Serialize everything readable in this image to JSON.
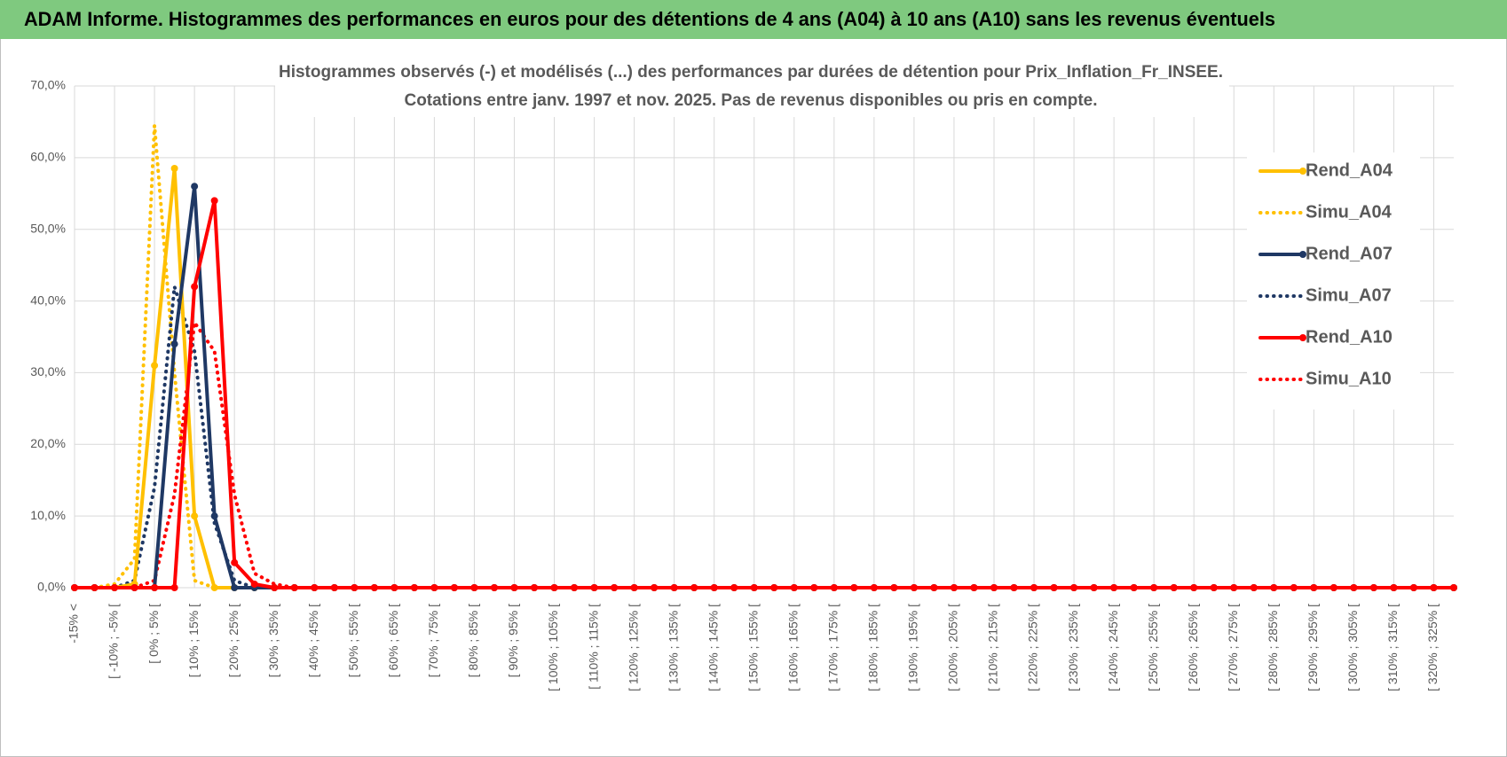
{
  "header": "ADAM Informe. Histogrammes des performances en euros pour des détentions de 4 ans (A04) à 10 ans (A10) sans les revenus éventuels",
  "chart_data": {
    "type": "line",
    "title": "Histogrammes observés (-) et modélisés (...) des performances par durées de détention pour Prix_Inflation_Fr_INSEE.",
    "subtitle": "Cotations entre janv. 1997 et nov. 2025. Pas de revenus disponibles ou pris en compte.",
    "categories": [
      "-15% <",
      null,
      "[ -10% ; -5% [",
      null,
      "[ 0% ; 5% [",
      null,
      "[ 10% ; 15% [",
      null,
      "[ 20% ; 25% [",
      null,
      "[ 30% ; 35% [",
      null,
      "[ 40% ; 45% [",
      null,
      "[ 50% ; 55% [",
      null,
      "[ 60% ; 65% [",
      null,
      "[ 70% ; 75% [",
      null,
      "[ 80% ; 85% [",
      null,
      "[ 90% ; 95% [",
      null,
      "[ 100% ; 105% [",
      null,
      "[ 110% ; 115% [",
      null,
      "[ 120% ; 125% [",
      null,
      "[ 130% ; 135% [",
      null,
      "[ 140% ; 145% [",
      null,
      "[ 150% ; 155% [",
      null,
      "[ 160% ; 165% [",
      null,
      "[ 170% ; 175% [",
      null,
      "[ 180% ; 185% [",
      null,
      "[ 190% ; 195% [",
      null,
      "[ 200% ; 205% [",
      null,
      "[ 210% ; 215% [",
      null,
      "[ 220% ; 225% [",
      null,
      "[ 230% ; 235% [",
      null,
      "[ 240% ; 245% [",
      null,
      "[ 250% ; 255% [",
      null,
      "[ 260% ; 265% [",
      null,
      "[ 270% ; 275% [",
      null,
      "[ 280% ; 285% [",
      null,
      "[ 290% ; 295% [",
      null,
      "[ 300% ; 305% [",
      null,
      "[ 310% ; 315% [",
      null,
      "[ 320% ; 325% [",
      null
    ],
    "series": [
      {
        "name": "Rend_A04",
        "color": "#ffc000",
        "style": "solid",
        "markers": true,
        "values": [
          0,
          0,
          0,
          0.5,
          31,
          58.5,
          10,
          0,
          0,
          0,
          0,
          0,
          0,
          0,
          0,
          0,
          0,
          0,
          0,
          0,
          0,
          0,
          0,
          0,
          0,
          0,
          0,
          0,
          0,
          0,
          0,
          0,
          0,
          0,
          0,
          0,
          0,
          0,
          0,
          0,
          0,
          0,
          0,
          0,
          0,
          0,
          0,
          0,
          0,
          0,
          0,
          0,
          0,
          0,
          0,
          0,
          0,
          0,
          0,
          0,
          0,
          0,
          0,
          0,
          0,
          0,
          0,
          0,
          0,
          0
        ]
      },
      {
        "name": "Simu_A04",
        "color": "#ffc000",
        "style": "dotted",
        "markers": false,
        "values": [
          0,
          0,
          0.5,
          4,
          64.5,
          30,
          1,
          0,
          0,
          0,
          0,
          0,
          0,
          0,
          0,
          0,
          0,
          0,
          0,
          0,
          0,
          0,
          0,
          0,
          0,
          0,
          0,
          0,
          0,
          0,
          0,
          0,
          0,
          0,
          0,
          0,
          0,
          0,
          0,
          0,
          0,
          0,
          0,
          0,
          0,
          0,
          0,
          0,
          0,
          0,
          0,
          0,
          0,
          0,
          0,
          0,
          0,
          0,
          0,
          0,
          0,
          0,
          0,
          0,
          0,
          0,
          0,
          0,
          0,
          0
        ]
      },
      {
        "name": "Rend_A07",
        "color": "#1f3864",
        "style": "solid",
        "markers": true,
        "values": [
          0,
          0,
          0,
          0,
          0,
          34,
          56,
          10,
          0,
          0,
          0,
          0,
          0,
          0,
          0,
          0,
          0,
          0,
          0,
          0,
          0,
          0,
          0,
          0,
          0,
          0,
          0,
          0,
          0,
          0,
          0,
          0,
          0,
          0,
          0,
          0,
          0,
          0,
          0,
          0,
          0,
          0,
          0,
          0,
          0,
          0,
          0,
          0,
          0,
          0,
          0,
          0,
          0,
          0,
          0,
          0,
          0,
          0,
          0,
          0,
          0,
          0,
          0,
          0,
          0,
          0,
          0,
          0,
          0,
          0
        ]
      },
      {
        "name": "Simu_A07",
        "color": "#1f3864",
        "style": "dotted",
        "markers": false,
        "values": [
          0,
          0,
          0,
          1,
          14,
          42,
          33,
          9,
          1,
          0,
          0,
          0,
          0,
          0,
          0,
          0,
          0,
          0,
          0,
          0,
          0,
          0,
          0,
          0,
          0,
          0,
          0,
          0,
          0,
          0,
          0,
          0,
          0,
          0,
          0,
          0,
          0,
          0,
          0,
          0,
          0,
          0,
          0,
          0,
          0,
          0,
          0,
          0,
          0,
          0,
          0,
          0,
          0,
          0,
          0,
          0,
          0,
          0,
          0,
          0,
          0,
          0,
          0,
          0,
          0,
          0,
          0,
          0,
          0,
          0
        ]
      },
      {
        "name": "Rend_A10",
        "color": "#ff0000",
        "style": "solid",
        "markers": true,
        "values": [
          0,
          0,
          0,
          0,
          0,
          0,
          42,
          54,
          3.5,
          0.5,
          0,
          0,
          0,
          0,
          0,
          0,
          0,
          0,
          0,
          0,
          0,
          0,
          0,
          0,
          0,
          0,
          0,
          0,
          0,
          0,
          0,
          0,
          0,
          0,
          0,
          0,
          0,
          0,
          0,
          0,
          0,
          0,
          0,
          0,
          0,
          0,
          0,
          0,
          0,
          0,
          0,
          0,
          0,
          0,
          0,
          0,
          0,
          0,
          0,
          0,
          0,
          0,
          0,
          0,
          0,
          0,
          0,
          0,
          0,
          0
        ]
      },
      {
        "name": "Simu_A10",
        "color": "#ff0000",
        "style": "dotted",
        "markers": false,
        "values": [
          0,
          0,
          0,
          0,
          1,
          13,
          37,
          33,
          13,
          2,
          0.5,
          0,
          0,
          0,
          0,
          0,
          0,
          0,
          0,
          0,
          0,
          0,
          0,
          0,
          0,
          0,
          0,
          0,
          0,
          0,
          0,
          0,
          0,
          0,
          0,
          0,
          0,
          0,
          0,
          0,
          0,
          0,
          0,
          0,
          0,
          0,
          0,
          0,
          0,
          0,
          0,
          0,
          0,
          0,
          0,
          0,
          0,
          0,
          0,
          0,
          0,
          0,
          0,
          0,
          0,
          0,
          0,
          0,
          0,
          0
        ]
      }
    ],
    "ylim": [
      0,
      70
    ],
    "yticks": [
      {
        "value": 0,
        "label": "0,0%"
      },
      {
        "value": 10,
        "label": "10,0%"
      },
      {
        "value": 20,
        "label": "20,0%"
      },
      {
        "value": 30,
        "label": "30,0%"
      },
      {
        "value": 40,
        "label": "40,0%"
      },
      {
        "value": 50,
        "label": "50,0%"
      },
      {
        "value": 60,
        "label": "60,0%"
      },
      {
        "value": 70,
        "label": "70,0%"
      }
    ],
    "grid": true,
    "legend": "right"
  }
}
